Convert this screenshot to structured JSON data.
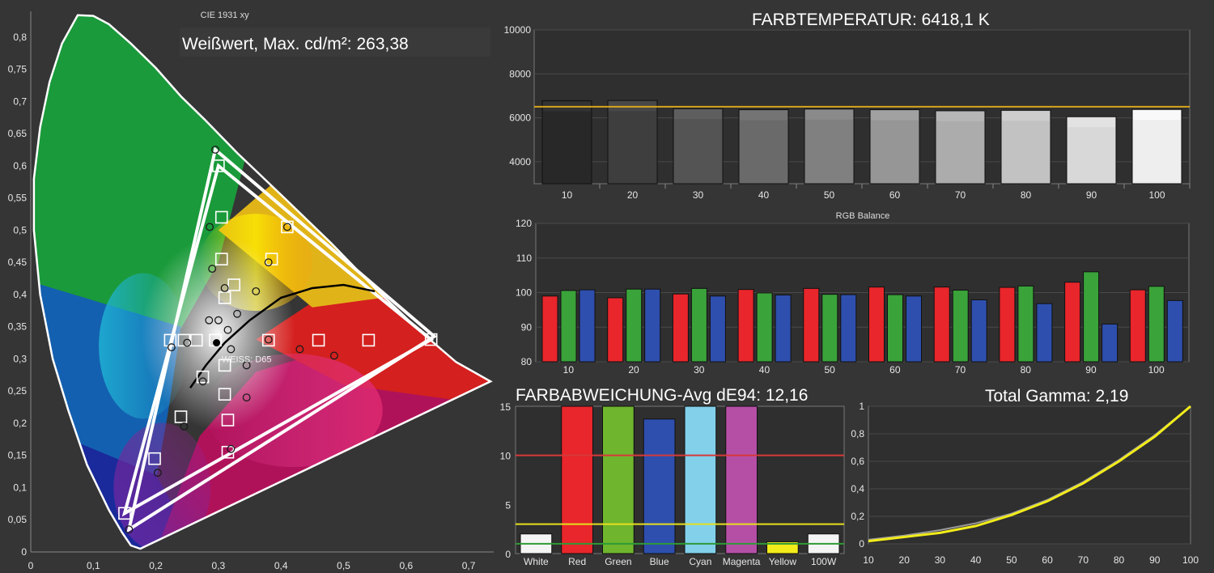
{
  "colors": {
    "red": "#e8262b",
    "green": "#3aa33a",
    "blue": "#2e4fae",
    "cyan": "#82d0ea",
    "magenta": "#b54fa6",
    "yellow": "#f2ec1a",
    "gold": "#d8a51c"
  },
  "chart_data": [
    {
      "type": "scatter",
      "title": "CIE 1931 xy",
      "annotation": "Weißwert, Max. cd/m²: 263,38",
      "white_point_label": "WEISS: D65",
      "xlim": [
        0,
        0.74
      ],
      "ylim": [
        0,
        0.84
      ],
      "x_ticks": [
        "0",
        "0,1",
        "0,2",
        "0,3",
        "0,4",
        "0,5",
        "0,6",
        "0,7"
      ],
      "y_ticks": [
        "0",
        "0,05",
        "0,1",
        "0,15",
        "0,2",
        "0,25",
        "0,3",
        "0,35",
        "0,4",
        "0,45",
        "0,5",
        "0,55",
        "0,6",
        "0,65",
        "0,7",
        "0,75",
        "0,8"
      ],
      "target_gamut": [
        [
          0.64,
          0.33
        ],
        [
          0.3,
          0.6
        ],
        [
          0.15,
          0.06
        ]
      ],
      "measured_gamut": [
        [
          0.645,
          0.335
        ],
        [
          0.295,
          0.625
        ],
        [
          0.157,
          0.035
        ]
      ],
      "targets": [
        [
          0.64,
          0.33
        ],
        [
          0.3,
          0.6
        ],
        [
          0.15,
          0.06
        ],
        [
          0.223,
          0.329
        ],
        [
          0.245,
          0.329
        ],
        [
          0.265,
          0.329
        ],
        [
          0.295,
          0.329
        ],
        [
          0.38,
          0.329
        ],
        [
          0.46,
          0.329
        ],
        [
          0.54,
          0.329
        ],
        [
          0.305,
          0.52
        ],
        [
          0.305,
          0.455
        ],
        [
          0.31,
          0.395
        ],
        [
          0.325,
          0.415
        ],
        [
          0.385,
          0.455
        ],
        [
          0.41,
          0.505
        ],
        [
          0.275,
          0.272
        ],
        [
          0.31,
          0.29
        ],
        [
          0.31,
          0.245
        ],
        [
          0.315,
          0.205
        ],
        [
          0.315,
          0.155
        ],
        [
          0.24,
          0.21
        ],
        [
          0.198,
          0.145
        ]
      ],
      "measured": [
        [
          0.295,
          0.625
        ],
        [
          0.286,
          0.505
        ],
        [
          0.29,
          0.44
        ],
        [
          0.31,
          0.41
        ],
        [
          0.38,
          0.45
        ],
        [
          0.41,
          0.505
        ],
        [
          0.36,
          0.405
        ],
        [
          0.33,
          0.37
        ],
        [
          0.3,
          0.36
        ],
        [
          0.285,
          0.36
        ],
        [
          0.315,
          0.345
        ],
        [
          0.32,
          0.315
        ],
        [
          0.25,
          0.325
        ],
        [
          0.225,
          0.318
        ],
        [
          0.275,
          0.265
        ],
        [
          0.345,
          0.29
        ],
        [
          0.345,
          0.24
        ],
        [
          0.32,
          0.16
        ],
        [
          0.245,
          0.195
        ],
        [
          0.203,
          0.123
        ],
        [
          0.157,
          0.035
        ],
        [
          0.38,
          0.33
        ],
        [
          0.43,
          0.315
        ],
        [
          0.485,
          0.305
        ]
      ],
      "white_point": [
        0.297,
        0.325
      ]
    },
    {
      "type": "bar",
      "title": "FARBTEMPERATUR: 6418,1 K",
      "categories": [
        "10",
        "20",
        "30",
        "40",
        "50",
        "60",
        "70",
        "80",
        "90",
        "100"
      ],
      "values": [
        6780,
        6790,
        6420,
        6370,
        6400,
        6370,
        6320,
        6340,
        6050,
        6380
      ],
      "reference": 6504,
      "ylim": [
        3000,
        10000
      ],
      "y_ticks": [
        "4000",
        "6000",
        "8000",
        "10000"
      ]
    },
    {
      "type": "bar",
      "title": "RGB Balance",
      "categories": [
        "10",
        "20",
        "30",
        "40",
        "50",
        "60",
        "70",
        "80",
        "90",
        "100"
      ],
      "series": [
        {
          "color": "red",
          "values": [
            99.0,
            98.5,
            99.6,
            100.9,
            101.2,
            101.6,
            101.6,
            101.5,
            103.0,
            100.8
          ]
        },
        {
          "color": "green",
          "values": [
            100.6,
            101.0,
            101.2,
            99.9,
            99.5,
            99.4,
            100.7,
            101.9,
            106.0,
            101.8
          ]
        },
        {
          "color": "blue",
          "values": [
            100.8,
            101.0,
            99.0,
            99.3,
            99.4,
            99.0,
            97.9,
            96.8,
            90.9,
            97.7
          ]
        }
      ],
      "ylim": [
        80,
        120
      ],
      "y_ticks": [
        "80",
        "90",
        "100",
        "110",
        "120"
      ]
    },
    {
      "type": "bar",
      "title": "FARBABWEICHUNG-Avg dE94: 12,16",
      "categories": [
        "White",
        "Red",
        "Green",
        "Blue",
        "Cyan",
        "Magenta",
        "Yellow",
        "100W"
      ],
      "values": [
        2.0,
        15,
        15,
        13.7,
        15,
        15,
        1.2,
        2.0
      ],
      "colors": [
        "#f4f4f4",
        "#e8262b",
        "#6fb52d",
        "#2e4fae",
        "#82d0ea",
        "#b54fa6",
        "#f2ec1a",
        "#f4f4f4"
      ],
      "thresholds": [
        {
          "value": 10,
          "color": "#d63a3a"
        },
        {
          "value": 3,
          "color": "#e6df1d"
        },
        {
          "value": 1,
          "color": "#2f9a35"
        }
      ],
      "ylim": [
        0,
        15
      ],
      "y_ticks": [
        "0",
        "5",
        "10",
        "15"
      ]
    },
    {
      "type": "line",
      "title": "Total Gamma: 2,19",
      "x": [
        10,
        20,
        30,
        40,
        50,
        60,
        70,
        80,
        90,
        100
      ],
      "y_ticks": [
        "0",
        "0,2",
        "0,4",
        "0,6",
        "0,8",
        "1"
      ],
      "x_ticks": [
        "10",
        "20",
        "30",
        "40",
        "50",
        "60",
        "70",
        "80",
        "90",
        "100"
      ],
      "series": [
        {
          "color": "yellow",
          "values": [
            0.02,
            0.05,
            0.08,
            0.13,
            0.21,
            0.31,
            0.44,
            0.6,
            0.78,
            1.0
          ]
        },
        {
          "color": "gray",
          "values": [
            0.03,
            0.06,
            0.1,
            0.15,
            0.22,
            0.32,
            0.45,
            0.61,
            0.79,
            1.0
          ]
        }
      ],
      "xlim": [
        10,
        100
      ],
      "ylim": [
        0,
        1
      ]
    }
  ]
}
